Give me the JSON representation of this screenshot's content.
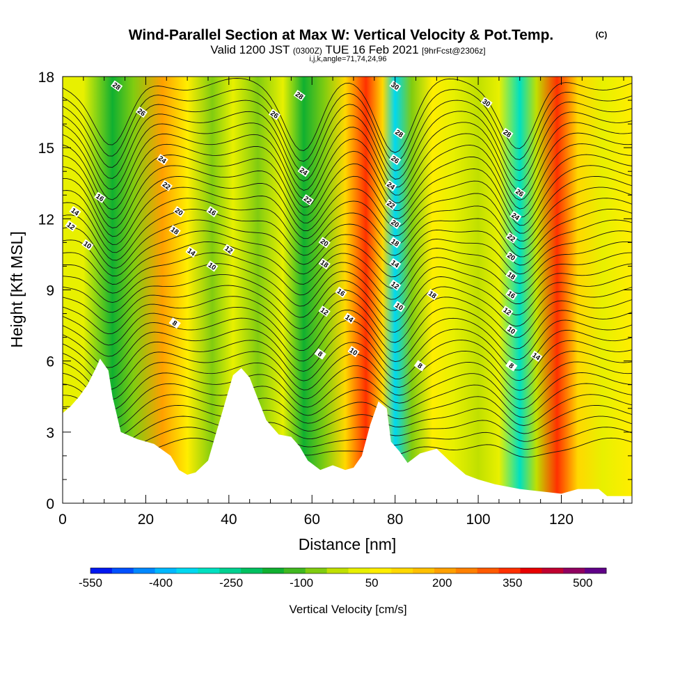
{
  "chart_data": {
    "type": "heatmap",
    "title": "Wind-Parallel Section at Max W: Vertical Velocity & Pot.Temp.",
    "title_mark": "(C)",
    "subtitle": {
      "valid": "Valid 1200 JST",
      "utc": "(0300Z)",
      "date": "TUE 16 Feb 2021",
      "fcst": "[9hrFcst@2306z]"
    },
    "indices": "i,j,k,angle=71,74,24,96",
    "xlabel": "Distance [nm]",
    "ylabel": "Height [Kft MSL]",
    "xlim": [
      0,
      137
    ],
    "ylim": [
      0,
      18
    ],
    "xticks": [
      0,
      20,
      40,
      60,
      80,
      100,
      120
    ],
    "yticks": [
      0,
      3,
      6,
      9,
      12,
      15,
      18
    ],
    "colorbar": {
      "label": "Vertical Velocity [cm/s]",
      "range": [
        -550,
        550
      ],
      "tick_values": [
        -550,
        -400,
        -250,
        -100,
        50,
        200,
        350,
        500
      ],
      "colors": [
        "#0018f0",
        "#0050ff",
        "#0088ff",
        "#00b8ff",
        "#00d8f0",
        "#00e0c0",
        "#00d090",
        "#00c060",
        "#10b030",
        "#40b820",
        "#80cc10",
        "#c0e000",
        "#e8f000",
        "#ffee00",
        "#ffd800",
        "#ffc000",
        "#ffa000",
        "#ff8000",
        "#ff5a00",
        "#ff3000",
        "#e80000",
        "#c00030",
        "#900060",
        "#600088"
      ]
    },
    "vertical_velocity_bands": [
      {
        "x": 0,
        "w": 20
      },
      {
        "x": 5,
        "w": 0
      },
      {
        "x": 12,
        "w": -180
      },
      {
        "x": 17,
        "w": -60
      },
      {
        "x": 24,
        "w": 200
      },
      {
        "x": 30,
        "w": 70
      },
      {
        "x": 36,
        "w": -60
      },
      {
        "x": 41,
        "w": 40
      },
      {
        "x": 47,
        "w": -90
      },
      {
        "x": 53,
        "w": 40
      },
      {
        "x": 58,
        "w": -170
      },
      {
        "x": 63,
        "w": -60
      },
      {
        "x": 68,
        "w": 120
      },
      {
        "x": 73,
        "w": 360
      },
      {
        "x": 77,
        "w": 100
      },
      {
        "x": 80,
        "w": -360
      },
      {
        "x": 84,
        "w": -60
      },
      {
        "x": 89,
        "w": 60
      },
      {
        "x": 94,
        "w": 30
      },
      {
        "x": 100,
        "w": -40
      },
      {
        "x": 105,
        "w": 20
      },
      {
        "x": 110,
        "w": -300
      },
      {
        "x": 114,
        "w": -40
      },
      {
        "x": 119,
        "w": 340
      },
      {
        "x": 124,
        "w": 100
      },
      {
        "x": 130,
        "w": 10
      },
      {
        "x": 137,
        "w": 70
      }
    ],
    "potential_temperature_labels": [
      {
        "x": 13,
        "y": 17.6,
        "v": "28"
      },
      {
        "x": 19,
        "y": 16.5,
        "v": "26"
      },
      {
        "x": 24,
        "y": 14.5,
        "v": "24"
      },
      {
        "x": 25,
        "y": 13.4,
        "v": "22"
      },
      {
        "x": 28,
        "y": 12.3,
        "v": "20"
      },
      {
        "x": 27,
        "y": 11.5,
        "v": "18"
      },
      {
        "x": 36,
        "y": 12.3,
        "v": "16"
      },
      {
        "x": 31,
        "y": 10.6,
        "v": "14"
      },
      {
        "x": 40,
        "y": 10.7,
        "v": "12"
      },
      {
        "x": 36,
        "y": 10.0,
        "v": "10"
      },
      {
        "x": 27,
        "y": 7.6,
        "v": "8"
      },
      {
        "x": 9,
        "y": 12.9,
        "v": "16"
      },
      {
        "x": 3,
        "y": 12.3,
        "v": "14"
      },
      {
        "x": 2,
        "y": 11.7,
        "v": "12"
      },
      {
        "x": 6,
        "y": 10.9,
        "v": "10"
      },
      {
        "x": 57,
        "y": 17.2,
        "v": "28"
      },
      {
        "x": 51,
        "y": 16.4,
        "v": "26"
      },
      {
        "x": 58,
        "y": 14.0,
        "v": "24"
      },
      {
        "x": 59,
        "y": 12.8,
        "v": "22"
      },
      {
        "x": 63,
        "y": 11.0,
        "v": "20"
      },
      {
        "x": 63,
        "y": 10.1,
        "v": "18"
      },
      {
        "x": 67,
        "y": 8.9,
        "v": "16"
      },
      {
        "x": 63,
        "y": 8.1,
        "v": "12"
      },
      {
        "x": 69,
        "y": 7.8,
        "v": "14"
      },
      {
        "x": 70,
        "y": 6.4,
        "v": "10"
      },
      {
        "x": 62,
        "y": 6.3,
        "v": "8"
      },
      {
        "x": 80,
        "y": 17.6,
        "v": "30"
      },
      {
        "x": 81,
        "y": 15.6,
        "v": "28"
      },
      {
        "x": 80,
        "y": 14.5,
        "v": "26"
      },
      {
        "x": 79,
        "y": 13.4,
        "v": "24"
      },
      {
        "x": 79,
        "y": 12.6,
        "v": "22"
      },
      {
        "x": 80,
        "y": 11.8,
        "v": "20"
      },
      {
        "x": 80,
        "y": 11.0,
        "v": "18"
      },
      {
        "x": 80,
        "y": 10.1,
        "v": "14"
      },
      {
        "x": 80,
        "y": 9.2,
        "v": "12"
      },
      {
        "x": 81,
        "y": 8.3,
        "v": "10"
      },
      {
        "x": 86,
        "y": 5.8,
        "v": "8"
      },
      {
        "x": 89,
        "y": 8.8,
        "v": "18"
      },
      {
        "x": 102,
        "y": 16.9,
        "v": "30"
      },
      {
        "x": 107,
        "y": 15.6,
        "v": "28"
      },
      {
        "x": 110,
        "y": 13.1,
        "v": "26"
      },
      {
        "x": 109,
        "y": 12.1,
        "v": "24"
      },
      {
        "x": 108,
        "y": 11.2,
        "v": "22"
      },
      {
        "x": 108,
        "y": 10.4,
        "v": "20"
      },
      {
        "x": 108,
        "y": 9.6,
        "v": "18"
      },
      {
        "x": 108,
        "y": 8.8,
        "v": "16"
      },
      {
        "x": 107,
        "y": 8.1,
        "v": "12"
      },
      {
        "x": 108,
        "y": 7.3,
        "v": "10"
      },
      {
        "x": 114,
        "y": 6.2,
        "v": "14"
      },
      {
        "x": 108,
        "y": 5.8,
        "v": "8"
      }
    ],
    "terrain_height": [
      {
        "x": 0,
        "y": 3.8
      },
      {
        "x": 2,
        "y": 4.1
      },
      {
        "x": 4,
        "y": 4.5
      },
      {
        "x": 6,
        "y": 5.0
      },
      {
        "x": 8,
        "y": 5.7
      },
      {
        "x": 9,
        "y": 6.1
      },
      {
        "x": 11,
        "y": 5.6
      },
      {
        "x": 12,
        "y": 4.5
      },
      {
        "x": 14,
        "y": 3.0
      },
      {
        "x": 18,
        "y": 2.7
      },
      {
        "x": 22,
        "y": 2.5
      },
      {
        "x": 26,
        "y": 2.0
      },
      {
        "x": 28,
        "y": 1.4
      },
      {
        "x": 30,
        "y": 1.2
      },
      {
        "x": 32,
        "y": 1.3
      },
      {
        "x": 35,
        "y": 1.8
      },
      {
        "x": 37,
        "y": 3.0
      },
      {
        "x": 39,
        "y": 4.2
      },
      {
        "x": 41,
        "y": 5.4
      },
      {
        "x": 43,
        "y": 5.7
      },
      {
        "x": 45,
        "y": 5.3
      },
      {
        "x": 47,
        "y": 4.4
      },
      {
        "x": 49,
        "y": 3.5
      },
      {
        "x": 52,
        "y": 2.9
      },
      {
        "x": 55,
        "y": 2.8
      },
      {
        "x": 57,
        "y": 2.4
      },
      {
        "x": 59,
        "y": 1.8
      },
      {
        "x": 62,
        "y": 1.4
      },
      {
        "x": 65,
        "y": 1.6
      },
      {
        "x": 68,
        "y": 1.4
      },
      {
        "x": 70,
        "y": 1.5
      },
      {
        "x": 72,
        "y": 2.0
      },
      {
        "x": 74,
        "y": 3.3
      },
      {
        "x": 76,
        "y": 4.3
      },
      {
        "x": 78,
        "y": 4.0
      },
      {
        "x": 79,
        "y": 2.6
      },
      {
        "x": 81,
        "y": 2.2
      },
      {
        "x": 83,
        "y": 1.7
      },
      {
        "x": 86,
        "y": 2.1
      },
      {
        "x": 90,
        "y": 2.3
      },
      {
        "x": 93,
        "y": 1.8
      },
      {
        "x": 97,
        "y": 1.2
      },
      {
        "x": 100,
        "y": 1.0
      },
      {
        "x": 104,
        "y": 0.8
      },
      {
        "x": 110,
        "y": 0.6
      },
      {
        "x": 115,
        "y": 0.5
      },
      {
        "x": 120,
        "y": 0.4
      },
      {
        "x": 124,
        "y": 0.6
      },
      {
        "x": 129,
        "y": 0.6
      },
      {
        "x": 131,
        "y": 0.3
      },
      {
        "x": 137,
        "y": 0.3
      }
    ]
  }
}
